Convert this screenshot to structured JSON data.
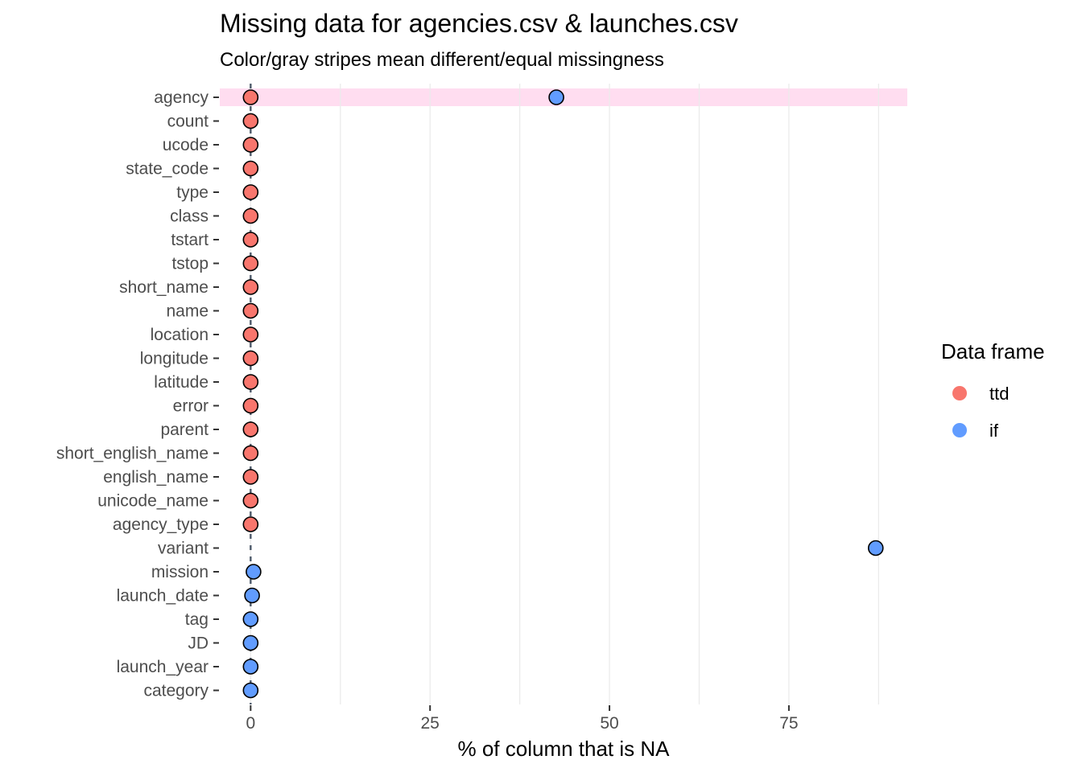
{
  "chart_data": {
    "type": "scatter",
    "title": "Missing data for agencies.csv & launches.csv",
    "subtitle": "Color/gray stripes mean different/equal missingness",
    "xlabel": "% of column that is NA",
    "ylabel": "",
    "xlim": [
      -4.3,
      91.5
    ],
    "xticks": [
      0,
      25,
      50,
      75
    ],
    "grid": "vertical",
    "legend": {
      "title": "Data frame",
      "position": "right"
    },
    "categories": [
      "agency",
      "count",
      "ucode",
      "state_code",
      "type",
      "class",
      "tstart",
      "tstop",
      "short_name",
      "name",
      "location",
      "longitude",
      "latitude",
      "error",
      "parent",
      "short_english_name",
      "english_name",
      "unicode_name",
      "agency_type",
      "variant",
      "mission",
      "launch_date",
      "tag",
      "JD",
      "launch_year",
      "category"
    ],
    "highlighted": [
      "agency"
    ],
    "series": [
      {
        "name": "ttd",
        "color": "#F8766D",
        "values": [
          0,
          0,
          0,
          0,
          0,
          0,
          0,
          0,
          0,
          0,
          0,
          0,
          0,
          0,
          0,
          0,
          0,
          0,
          0,
          null,
          null,
          null,
          null,
          null,
          null,
          null
        ]
      },
      {
        "name": "if",
        "color": "#619CFF",
        "values": [
          42.6,
          null,
          null,
          null,
          null,
          null,
          null,
          null,
          null,
          null,
          null,
          null,
          null,
          null,
          null,
          null,
          null,
          null,
          null,
          87.1,
          0.4,
          0.2,
          0,
          0,
          0,
          0
        ]
      }
    ],
    "stripe_color": "#FFDDF0"
  }
}
